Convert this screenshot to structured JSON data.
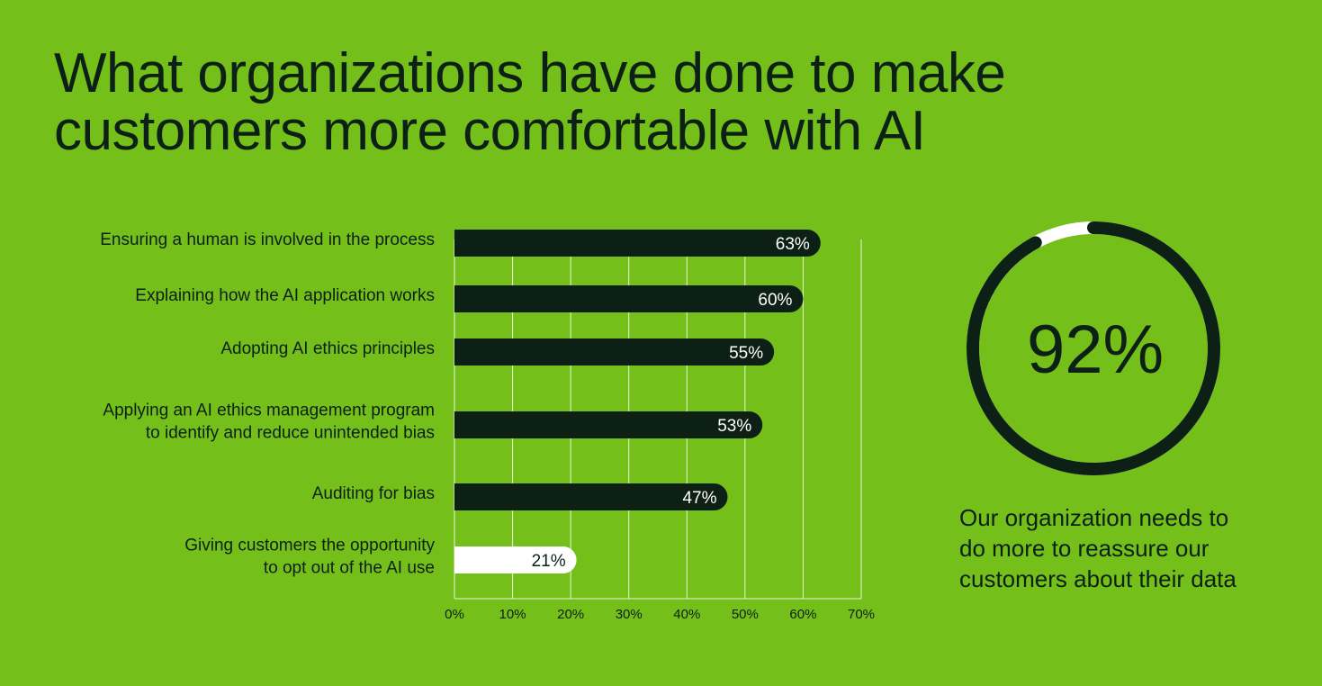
{
  "title": {
    "line1": "What organizations have done to make",
    "line2": "customers more comfortable with AI"
  },
  "colors": {
    "background": "#74bf1a",
    "bar_dark": "#0d2016",
    "bar_highlight": "#ffffff",
    "text_dark": "#0d2016",
    "grid": "#e8f5d6"
  },
  "chart_data": [
    {
      "type": "bar",
      "orientation": "horizontal",
      "categories": [
        "Ensuring a human is involved in the process",
        "Explaining how the AI application works",
        "Adopting AI ethics principles",
        "Applying an AI ethics management program to identify and reduce unintended bias",
        "Auditing for bias",
        "Giving customers the opportunity to opt out of the AI use"
      ],
      "category_lines": [
        [
          "Ensuring a human is involved in the process"
        ],
        [
          "Explaining how the AI application works"
        ],
        [
          "Adopting AI ethics principles"
        ],
        [
          "Applying an AI ethics management program",
          "to identify and reduce unintended bias"
        ],
        [
          "Auditing for bias"
        ],
        [
          "Giving customers the opportunity",
          "to opt out of the AI use"
        ]
      ],
      "values": [
        63,
        60,
        55,
        53,
        47,
        21
      ],
      "value_labels": [
        "63%",
        "60%",
        "55%",
        "53%",
        "47%",
        "21%"
      ],
      "highlight_index": 5,
      "xlim": [
        0,
        70
      ],
      "xticks": [
        0,
        10,
        20,
        30,
        40,
        50,
        60,
        70
      ],
      "xtick_labels": [
        "0%",
        "10%",
        "20%",
        "30%",
        "40%",
        "50%",
        "60%",
        "70%"
      ],
      "grid": true
    },
    {
      "type": "pie",
      "style": "donut",
      "value": 92,
      "value_label": "92%",
      "caption": "Our organization needs to do more to reassure our customers about their data"
    }
  ]
}
